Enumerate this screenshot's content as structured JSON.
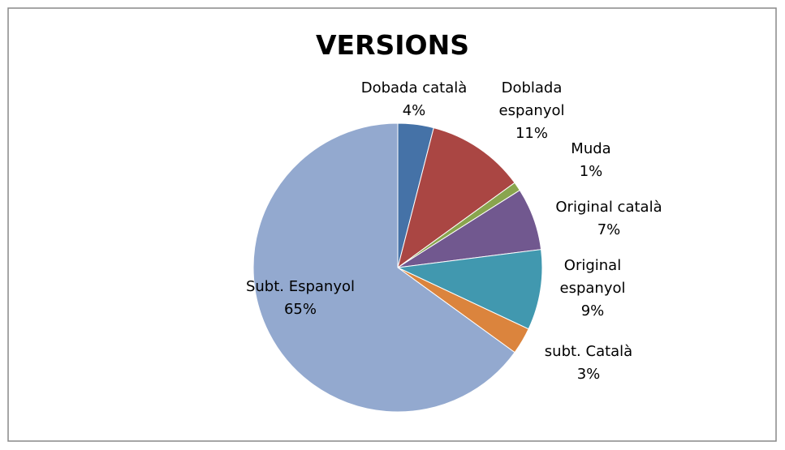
{
  "chart_data": {
    "type": "pie",
    "title": "VERSIONS",
    "categories": [
      "Dobada català",
      "Doblada espanyol",
      "Muda",
      "Original català",
      "Original espanyol",
      "subt. Català",
      "Subt. Espanyol"
    ],
    "values": [
      4,
      11,
      1,
      7,
      9,
      3,
      65
    ],
    "value_labels": [
      "4%",
      "11%",
      "1%",
      "7%",
      "9%",
      "3%",
      "65%"
    ],
    "colors": [
      "#4572a7",
      "#aa4643",
      "#89a54e",
      "#71588f",
      "#4198af",
      "#db843d",
      "#93a9cf"
    ]
  }
}
